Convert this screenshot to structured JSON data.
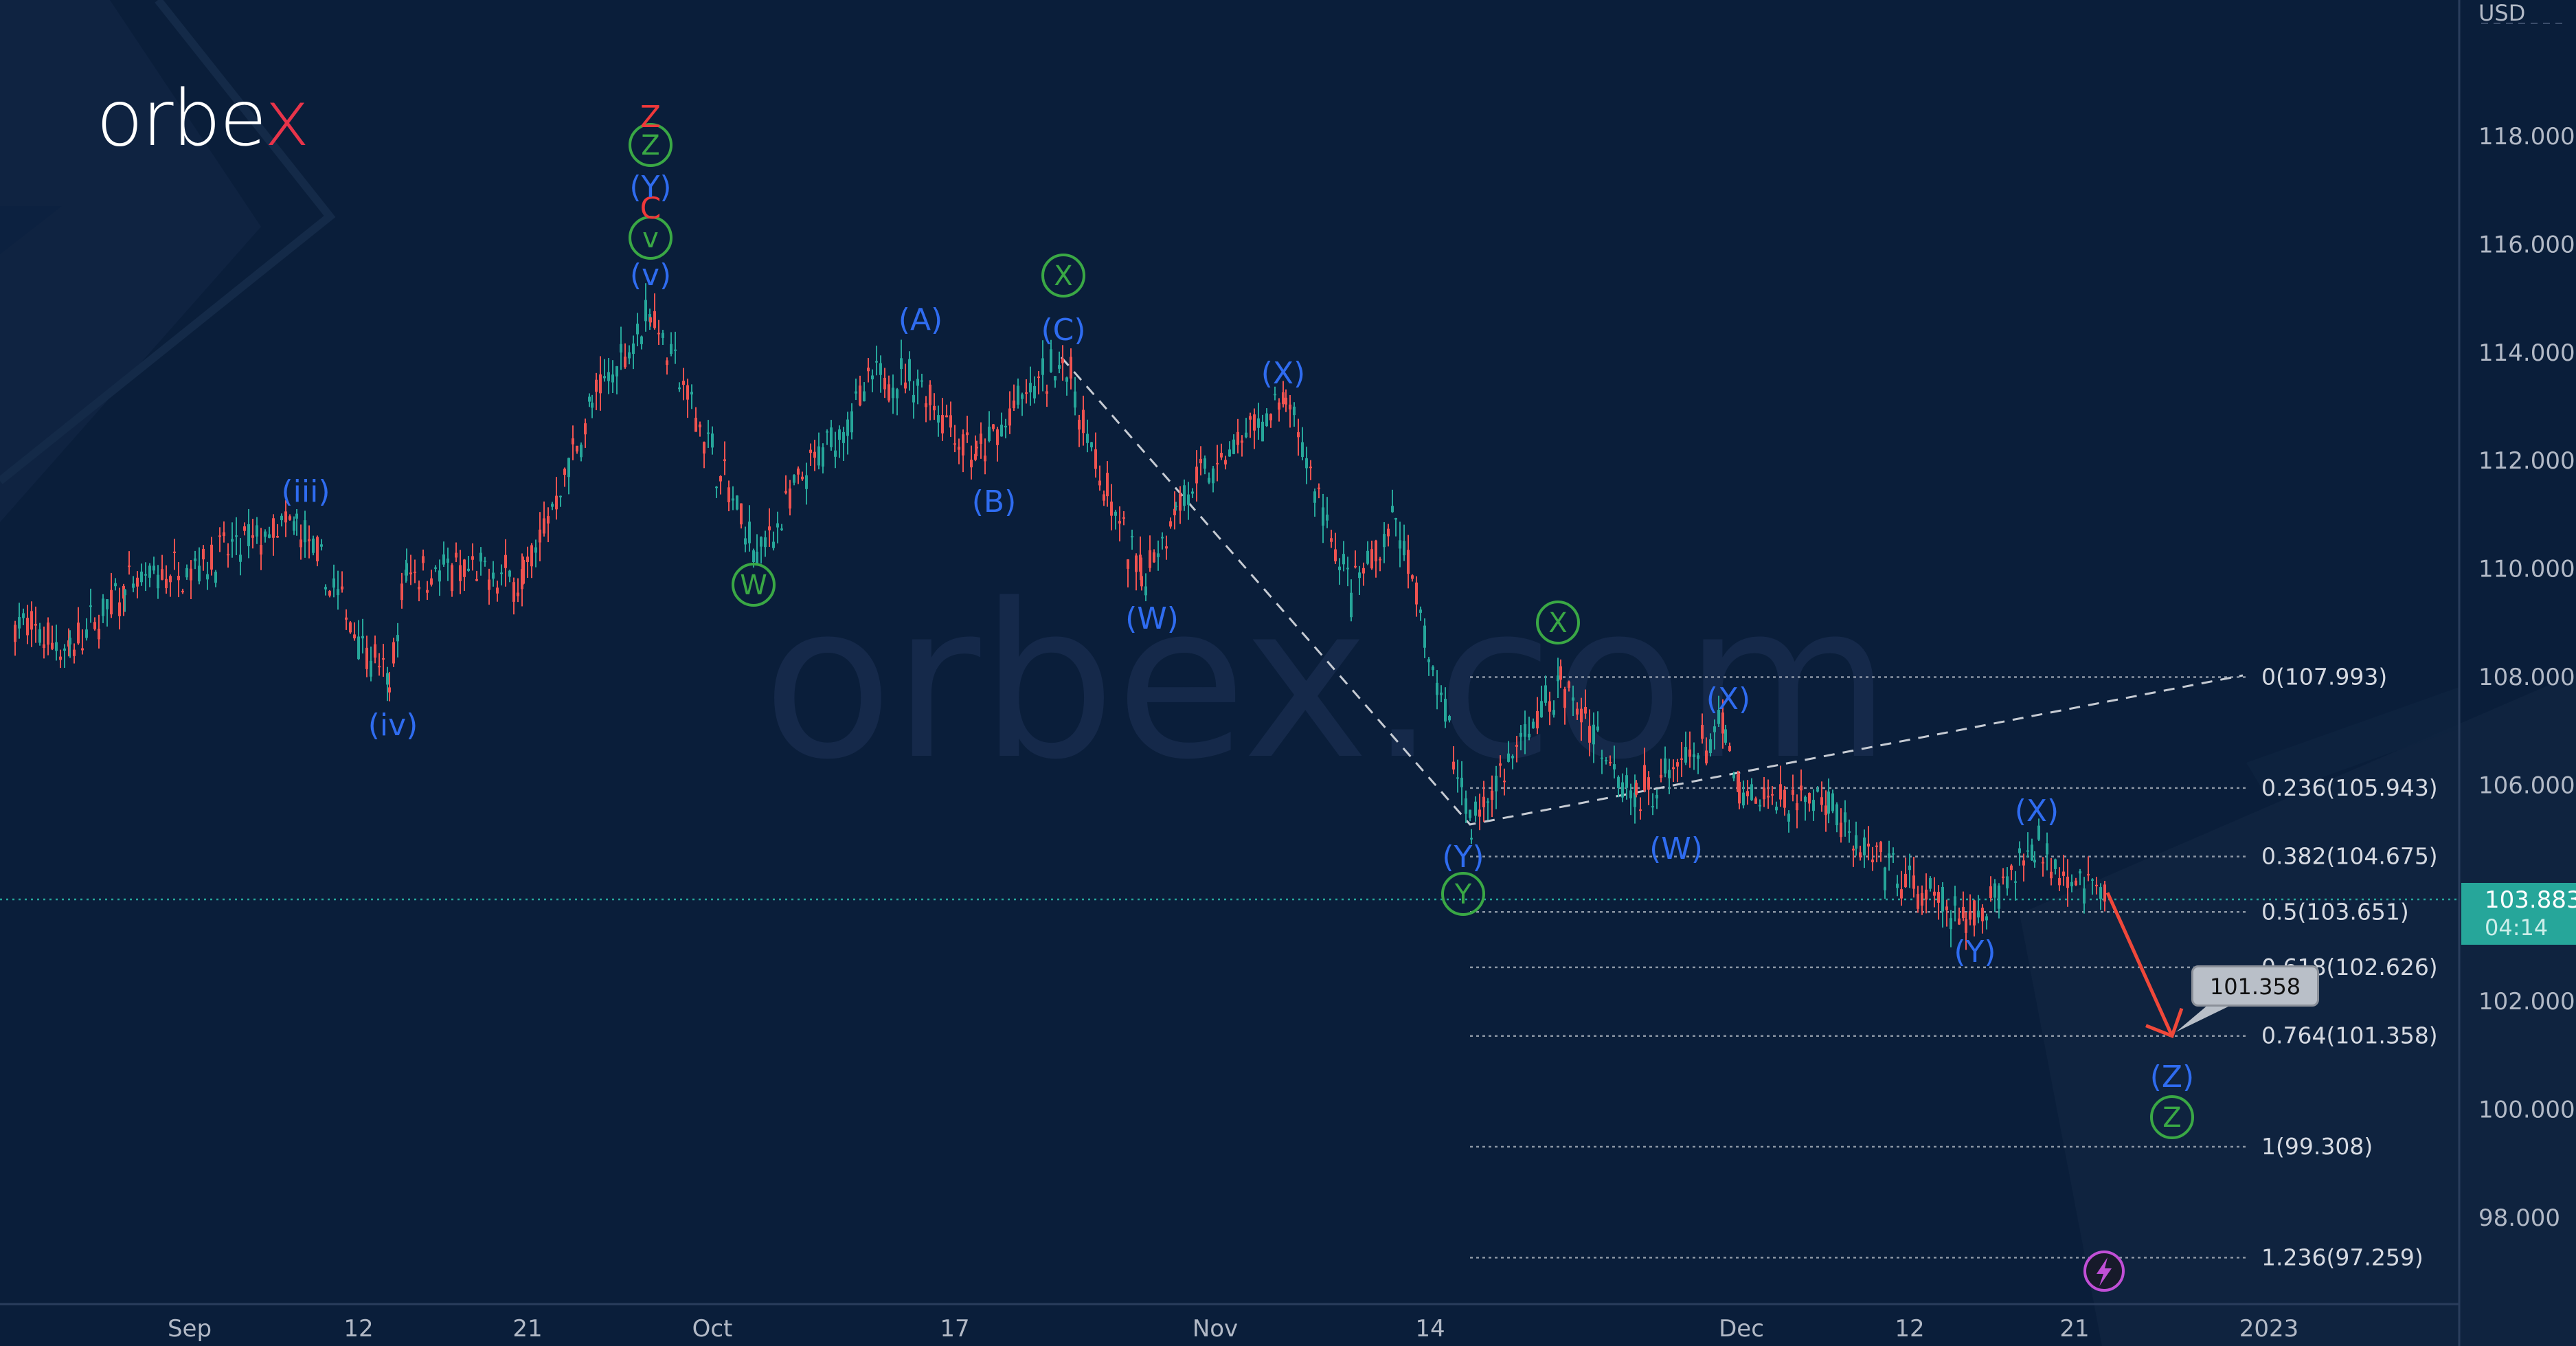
{
  "brand": {
    "logo_main": "orbe",
    "logo_accent": "x",
    "watermark": "orbex.com"
  },
  "axis": {
    "currency": "USD",
    "y_ticks": [
      "118.000",
      "116.000",
      "114.000",
      "112.000",
      "110.000",
      "108.000",
      "106.000",
      "102.000",
      "100.000",
      "98.000"
    ],
    "x_ticks": [
      "Sep",
      "12",
      "21",
      "Oct",
      "17",
      "Nov",
      "14",
      "Dec",
      "12",
      "21",
      "2023"
    ]
  },
  "current_price": {
    "value": "103.883",
    "countdown": "04:14",
    "color": "#26a69a"
  },
  "target_callout": {
    "value": "101.358"
  },
  "colors": {
    "bg": "#0a1e3a",
    "up": "#26a69a",
    "down": "#ef5350",
    "wave_blue": "#2f6cf0",
    "wave_green": "#3aa845",
    "wave_red": "#f0383a",
    "fib": "#b8bec8",
    "forecast_arrow": "#f0483a"
  },
  "chart_data": {
    "type": "line",
    "title": "",
    "instrument_quote": "USD",
    "xlabel": "",
    "ylabel": "USD",
    "ylim": [
      96.5,
      120
    ],
    "x_labels": [
      "Sep",
      "12",
      "21",
      "Oct",
      "17",
      "Nov",
      "14",
      "Dec",
      "12",
      "21",
      "2023"
    ],
    "grid": false,
    "price_path": {
      "description": "approximate closing path (price) at key swing points, date order",
      "x": [
        "Aug 29",
        "Sep 2",
        "Sep 6",
        "Sep 9",
        "Sep 13",
        "Sep 15",
        "Sep 20",
        "Sep 23",
        "Sep 27",
        "Oct 3",
        "Oct 5",
        "Oct 10",
        "Oct 14",
        "Oct 18",
        "Oct 21",
        "Oct 24",
        "Oct 27",
        "Nov 1",
        "Nov 4",
        "Nov 7",
        "Nov 10",
        "Nov 11",
        "Nov 15",
        "Nov 21",
        "Nov 28",
        "Nov 30",
        "Dec 1",
        "Dec 7",
        "Dec 9",
        "Dec 15",
        "Dec 19",
        "Dec 21"
      ],
      "values": [
        109.0,
        108.5,
        109.6,
        110.8,
        107.8,
        110.0,
        109.8,
        113.0,
        114.8,
        110.2,
        111.5,
        113.6,
        113.4,
        112.0,
        113.0,
        113.9,
        111.3,
        109.8,
        111.2,
        113.1,
        109.5,
        110.9,
        105.3,
        107.9,
        105.8,
        107.0,
        105.7,
        105.8,
        104.8,
        103.4,
        104.9,
        103.88
      ]
    },
    "fibonacci": [
      {
        "level": "0",
        "price": 107.993,
        "label": "0(107.993)"
      },
      {
        "level": "0.236",
        "price": 105.943,
        "label": "0.236(105.943)"
      },
      {
        "level": "0.382",
        "price": 104.675,
        "label": "0.382(104.675)"
      },
      {
        "level": "0.5",
        "price": 103.651,
        "label": "0.5(103.651)"
      },
      {
        "level": "0.618",
        "price": 102.626,
        "label": "0.618(102.626)"
      },
      {
        "level": "0.764",
        "price": 101.358,
        "label": "0.764(101.358)"
      },
      {
        "level": "1",
        "price": 99.308,
        "label": "1(99.308)"
      },
      {
        "level": "1.236",
        "price": 97.259,
        "label": "1.236(97.259)"
      }
    ],
    "forecast": {
      "from": 103.88,
      "to": 101.358,
      "label": "101.358"
    },
    "wave_labels": [
      {
        "text": "(iii)",
        "color": "blue",
        "price_at": 110.8,
        "date": "Sep 9"
      },
      {
        "text": "(iv)",
        "color": "blue",
        "price_at": 107.8,
        "date": "Sep 13"
      },
      {
        "text": "(v)",
        "color": "blue",
        "price_at": 114.8,
        "date": "Sep 27"
      },
      {
        "text": "v",
        "color": "green-circle",
        "date": "Sep 27"
      },
      {
        "text": "C",
        "color": "red",
        "date": "Sep 27"
      },
      {
        "text": "(Y)",
        "color": "blue",
        "date": "Sep 27"
      },
      {
        "text": "Z",
        "color": "green-circle",
        "date": "Sep 27"
      },
      {
        "text": "Z",
        "color": "red",
        "date": "Sep 27"
      },
      {
        "text": "W",
        "color": "green-circle",
        "date": "Oct 5"
      },
      {
        "text": "(A)",
        "color": "blue",
        "date": "Oct 14"
      },
      {
        "text": "(B)",
        "color": "blue",
        "date": "Oct 18"
      },
      {
        "text": "(C)",
        "color": "blue",
        "date": "Oct 24"
      },
      {
        "text": "X",
        "color": "green-circle",
        "date": "Oct 24"
      },
      {
        "text": "(W)",
        "color": "blue",
        "date": "Nov 1"
      },
      {
        "text": "(X)",
        "color": "blue",
        "date": "Nov 7"
      },
      {
        "text": "(Y)",
        "color": "blue",
        "date": "Nov 15"
      },
      {
        "text": "Y",
        "color": "green-circle",
        "date": "Nov 15"
      },
      {
        "text": "X",
        "color": "green-circle",
        "date": "Nov 21"
      },
      {
        "text": "(W)",
        "color": "blue",
        "date": "Nov 28"
      },
      {
        "text": "(X)",
        "color": "blue",
        "date": "Nov 30"
      },
      {
        "text": "(Y)",
        "color": "blue",
        "date": "Dec 15"
      },
      {
        "text": "(X)",
        "color": "blue",
        "date": "Dec 19"
      },
      {
        "text": "(Z)",
        "color": "blue",
        "date": "projected"
      },
      {
        "text": "Z",
        "color": "green-circle",
        "date": "projected"
      }
    ]
  }
}
